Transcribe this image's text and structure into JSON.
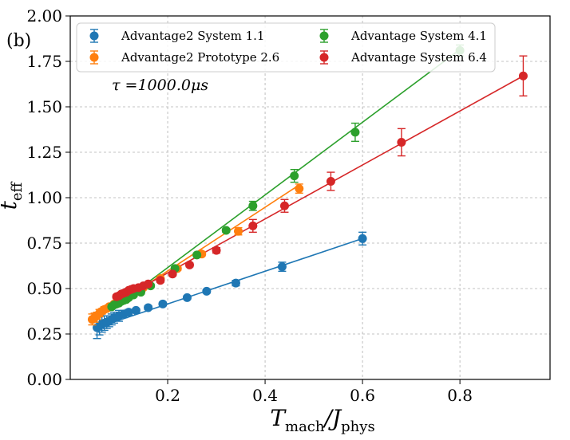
{
  "panel_label": "(b)",
  "annotation": "τ =1000.0μs",
  "axes": {
    "xlabel_main": "T",
    "xlabel_sub1": "mach",
    "xlabel_mid": "/J",
    "xlabel_sub2": "phys",
    "ylabel_main": "t",
    "ylabel_sub": "eff"
  },
  "chart_data": {
    "type": "scatter",
    "xlim": [
      0.0,
      0.985
    ],
    "ylim": [
      0.0,
      2.0
    ],
    "xticks": [
      0.2,
      0.4,
      0.6,
      0.8
    ],
    "xtick_labels": [
      "0.2",
      "0.4",
      "0.6",
      "0.8"
    ],
    "yticks": [
      0.0,
      0.25,
      0.5,
      0.75,
      1.0,
      1.25,
      1.5,
      1.75,
      2.0
    ],
    "ytick_labels": [
      "0.00",
      "0.25",
      "0.50",
      "0.75",
      "1.00",
      "1.25",
      "1.50",
      "1.75",
      "2.00"
    ],
    "grid": true,
    "legend_placement": "top",
    "series": [
      {
        "name": "Advantage2 System 1.1",
        "color": "#1f77b4",
        "legend_col": 0,
        "x": [
          0.055,
          0.06,
          0.065,
          0.07,
          0.075,
          0.08,
          0.085,
          0.09,
          0.1,
          0.11,
          0.12,
          0.135,
          0.16,
          0.19,
          0.24,
          0.28,
          0.34,
          0.435,
          0.6
        ],
        "y": [
          0.285,
          0.295,
          0.305,
          0.31,
          0.315,
          0.32,
          0.33,
          0.34,
          0.35,
          0.36,
          0.37,
          0.38,
          0.395,
          0.415,
          0.45,
          0.485,
          0.53,
          0.62,
          0.775
        ],
        "err": [
          0.06,
          0.05,
          0.045,
          0.04,
          0.035,
          0.03,
          0.03,
          0.03,
          0.03,
          0.02,
          0.015,
          0.01,
          0.01,
          0.01,
          0.01,
          0.01,
          0.015,
          0.025,
          0.035
        ],
        "fit_x": [
          0.055,
          0.6
        ],
        "fit_y": [
          0.285,
          0.775
        ]
      },
      {
        "name": "Advantage2 Prototype 2.6",
        "color": "#ff7f0e",
        "legend_col": 0,
        "x": [
          0.045,
          0.05,
          0.055,
          0.06,
          0.065,
          0.07,
          0.075,
          0.08,
          0.09,
          0.1,
          0.11,
          0.13,
          0.15,
          0.185,
          0.22,
          0.27,
          0.345,
          0.47
        ],
        "y": [
          0.33,
          0.34,
          0.35,
          0.365,
          0.375,
          0.385,
          0.39,
          0.4,
          0.415,
          0.43,
          0.44,
          0.47,
          0.505,
          0.555,
          0.61,
          0.69,
          0.815,
          1.05
        ],
        "err": [
          0.03,
          0.025,
          0.02,
          0.02,
          0.015,
          0.015,
          0.01,
          0.01,
          0.01,
          0.01,
          0.01,
          0.01,
          0.01,
          0.01,
          0.01,
          0.01,
          0.02,
          0.025
        ],
        "fit_x": [
          0.045,
          0.47
        ],
        "fit_y": [
          0.325,
          1.07
        ]
      },
      {
        "name": "Advantage System 4.1",
        "color": "#2ca02c",
        "legend_col": 1,
        "x": [
          0.085,
          0.09,
          0.095,
          0.1,
          0.105,
          0.11,
          0.115,
          0.12,
          0.13,
          0.145,
          0.165,
          0.215,
          0.26,
          0.32,
          0.375,
          0.46,
          0.585,
          0.8
        ],
        "y": [
          0.4,
          0.41,
          0.415,
          0.42,
          0.43,
          0.435,
          0.44,
          0.45,
          0.465,
          0.48,
          0.515,
          0.61,
          0.685,
          0.82,
          0.955,
          1.12,
          1.36,
          1.81
        ],
        "err": [
          0.01,
          0.01,
          0.01,
          0.01,
          0.01,
          0.01,
          0.01,
          0.01,
          0.01,
          0.01,
          0.01,
          0.01,
          0.01,
          0.01,
          0.025,
          0.035,
          0.05,
          0.03
        ],
        "fit_x": [
          0.085,
          0.8
        ],
        "fit_y": [
          0.385,
          1.815
        ]
      },
      {
        "name": "Advantage System 6.4",
        "color": "#d62728",
        "legend_col": 1,
        "x": [
          0.095,
          0.1,
          0.105,
          0.11,
          0.115,
          0.12,
          0.125,
          0.13,
          0.14,
          0.15,
          0.16,
          0.185,
          0.21,
          0.245,
          0.3,
          0.375,
          0.44,
          0.535,
          0.68,
          0.93
        ],
        "y": [
          0.455,
          0.46,
          0.47,
          0.475,
          0.48,
          0.49,
          0.495,
          0.5,
          0.505,
          0.515,
          0.525,
          0.545,
          0.58,
          0.63,
          0.71,
          0.845,
          0.955,
          1.09,
          1.305,
          1.67
        ],
        "err": [
          0.01,
          0.01,
          0.01,
          0.01,
          0.01,
          0.01,
          0.01,
          0.01,
          0.01,
          0.01,
          0.01,
          0.01,
          0.01,
          0.01,
          0.015,
          0.035,
          0.035,
          0.05,
          0.075,
          0.11
        ],
        "fit_x": [
          0.095,
          0.93
        ],
        "fit_y": [
          0.43,
          1.67
        ]
      }
    ]
  }
}
